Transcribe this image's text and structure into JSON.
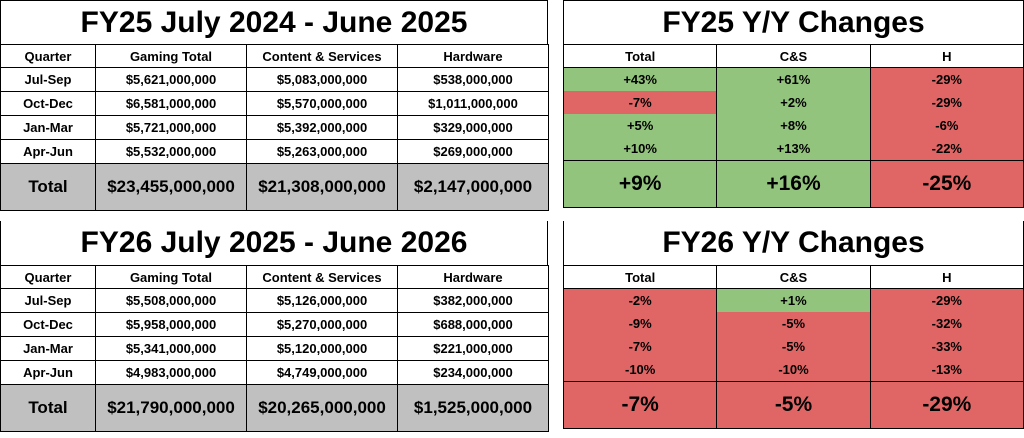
{
  "fy25": {
    "title": "FY25 July 2024 - June 2025",
    "headers": [
      "Quarter",
      "Gaming Total",
      "Content & Services",
      "Hardware"
    ],
    "rows": [
      [
        "Jul-Sep",
        "$5,621,000,000",
        "$5,083,000,000",
        "$538,000,000"
      ],
      [
        "Oct-Dec",
        "$6,581,000,000",
        "$5,570,000,000",
        "$1,011,000,000"
      ],
      [
        "Jan-Mar",
        "$5,721,000,000",
        "$5,392,000,000",
        "$329,000,000"
      ],
      [
        "Apr-Jun",
        "$5,532,000,000",
        "$5,263,000,000",
        "$269,000,000"
      ]
    ],
    "total": [
      "Total",
      "$23,455,000,000",
      "$21,308,000,000",
      "$2,147,000,000"
    ]
  },
  "fy25_yy": {
    "title": "FY25 Y/Y Changes",
    "headers": [
      "Total",
      "C&S",
      "H"
    ],
    "rows": [
      [
        "+43%",
        "+61%",
        "-29%"
      ],
      [
        "-7%",
        "+2%",
        "-29%"
      ],
      [
        "+5%",
        "+8%",
        "-6%"
      ],
      [
        "+10%",
        "+13%",
        "-22%"
      ]
    ],
    "total": [
      "+9%",
      "+16%",
      "-25%"
    ],
    "colors": {
      "positive": "#93c47d",
      "negative": "#e06666"
    }
  },
  "fy26": {
    "title": "FY26 July 2025 - June 2026",
    "headers": [
      "Quarter",
      "Gaming Total",
      "Content & Services",
      "Hardware"
    ],
    "rows": [
      [
        "Jul-Sep",
        "$5,508,000,000",
        "$5,126,000,000",
        "$382,000,000"
      ],
      [
        "Oct-Dec",
        "$5,958,000,000",
        "$5,270,000,000",
        "$688,000,000"
      ],
      [
        "Jan-Mar",
        "$5,341,000,000",
        "$5,120,000,000",
        "$221,000,000"
      ],
      [
        "Apr-Jun",
        "$4,983,000,000",
        "$4,749,000,000",
        "$234,000,000"
      ]
    ],
    "total": [
      "Total",
      "$21,790,000,000",
      "$20,265,000,000",
      "$1,525,000,000"
    ]
  },
  "fy26_yy": {
    "title": "FY26 Y/Y Changes",
    "headers": [
      "Total",
      "C&S",
      "H"
    ],
    "rows": [
      [
        "-2%",
        "+1%",
        "-29%"
      ],
      [
        "-9%",
        "-5%",
        "-32%"
      ],
      [
        "-7%",
        "-5%",
        "-33%"
      ],
      [
        "-10%",
        "-10%",
        "-13%"
      ]
    ],
    "total": [
      "-7%",
      "-5%",
      "-29%"
    ]
  }
}
